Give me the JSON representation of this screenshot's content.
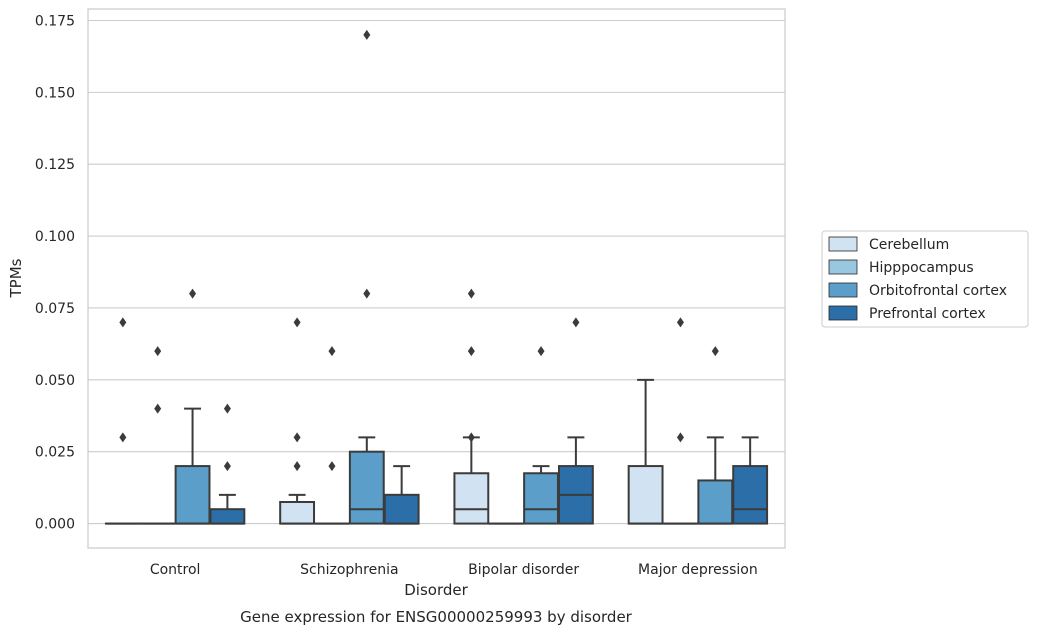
{
  "chart_data": {
    "type": "box",
    "title": "",
    "caption": "Gene expression for ENSG00000259993 by disorder",
    "xlabel": "Disorder",
    "ylabel": "TPMs",
    "ylim": [
      -0.0085,
      0.179
    ],
    "yticks": [
      "0.000",
      "0.025",
      "0.050",
      "0.075",
      "0.100",
      "0.125",
      "0.150",
      "0.175"
    ],
    "ytick_values": [
      0,
      0.025,
      0.05,
      0.075,
      0.1,
      0.125,
      0.15,
      0.175
    ],
    "grid": true,
    "legend_position": "center-right",
    "categories": [
      "Control",
      "Schizophrenia",
      "Bipolar disorder",
      "Major depression"
    ],
    "series": [
      {
        "name": "Cerebellum",
        "color": "#d1e2f2",
        "boxes": [
          {
            "q1": 0,
            "median": 0,
            "q3": 0,
            "whisker_low": 0,
            "whisker_high": 0,
            "outliers": [
              0.03,
              0.07
            ]
          },
          {
            "q1": 0,
            "median": 0,
            "q3": 0.0075,
            "whisker_low": 0,
            "whisker_high": 0.01,
            "outliers": [
              0.02,
              0.03,
              0.07
            ]
          },
          {
            "q1": 0,
            "median": 0.005,
            "q3": 0.0175,
            "whisker_low": 0,
            "whisker_high": 0.03,
            "outliers": [
              0.03,
              0.06,
              0.08
            ]
          },
          {
            "q1": 0,
            "median": 0,
            "q3": 0.02,
            "whisker_low": 0,
            "whisker_high": 0.05,
            "outliers": []
          }
        ]
      },
      {
        "name": "Hipppocampus",
        "color": "#9ac7e0",
        "boxes": [
          {
            "q1": 0,
            "median": 0,
            "q3": 0,
            "whisker_low": 0,
            "whisker_high": 0,
            "outliers": [
              0.04,
              0.06
            ]
          },
          {
            "q1": 0,
            "median": 0,
            "q3": 0,
            "whisker_low": 0,
            "whisker_high": 0,
            "outliers": [
              0.02,
              0.06
            ]
          },
          {
            "q1": 0,
            "median": 0,
            "q3": 0,
            "whisker_low": 0,
            "whisker_high": 0,
            "outliers": []
          },
          {
            "q1": 0,
            "median": 0,
            "q3": 0,
            "whisker_low": 0,
            "whisker_high": 0,
            "outliers": [
              0.03,
              0.07
            ]
          }
        ]
      },
      {
        "name": "Orbitofrontal cortex",
        "color": "#5b9ec9",
        "boxes": [
          {
            "q1": 0,
            "median": 0,
            "q3": 0.02,
            "whisker_low": 0,
            "whisker_high": 0.04,
            "outliers": [
              0.08
            ]
          },
          {
            "q1": 0,
            "median": 0.005,
            "q3": 0.025,
            "whisker_low": 0,
            "whisker_high": 0.03,
            "outliers": [
              0.08,
              0.17
            ]
          },
          {
            "q1": 0,
            "median": 0.005,
            "q3": 0.0175,
            "whisker_low": 0,
            "whisker_high": 0.02,
            "outliers": [
              0.06
            ]
          },
          {
            "q1": 0,
            "median": 0,
            "q3": 0.015,
            "whisker_low": 0,
            "whisker_high": 0.03,
            "outliers": [
              0.06
            ]
          }
        ]
      },
      {
        "name": "Prefrontal cortex",
        "color": "#2b6ea8",
        "boxes": [
          {
            "q1": 0,
            "median": 0,
            "q3": 0.005,
            "whisker_low": 0,
            "whisker_high": 0.01,
            "outliers": [
              0.02,
              0.04
            ]
          },
          {
            "q1": 0,
            "median": 0,
            "q3": 0.01,
            "whisker_low": 0,
            "whisker_high": 0.02,
            "outliers": []
          },
          {
            "q1": 0,
            "median": 0.01,
            "q3": 0.02,
            "whisker_low": 0,
            "whisker_high": 0.03,
            "outliers": [
              0.07
            ]
          },
          {
            "q1": 0,
            "median": 0.005,
            "q3": 0.02,
            "whisker_low": 0,
            "whisker_high": 0.03,
            "outliers": []
          }
        ]
      }
    ]
  }
}
